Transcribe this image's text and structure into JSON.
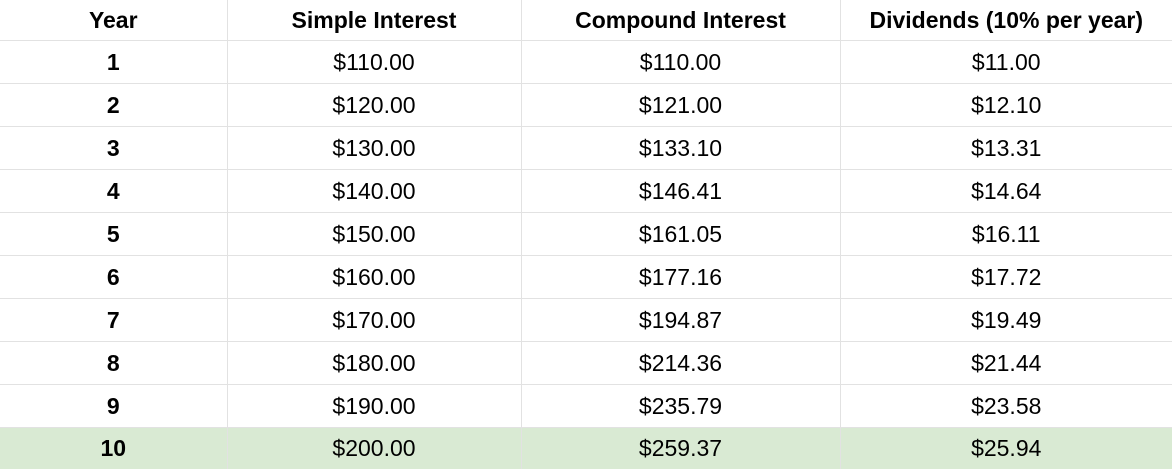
{
  "table": {
    "headers": [
      "Year",
      "Simple Interest",
      "Compound Interest",
      "Dividends (10% per year)"
    ],
    "rows": [
      [
        "1",
        "$110.00",
        "$110.00",
        "$11.00"
      ],
      [
        "2",
        "$120.00",
        "$121.00",
        "$12.10"
      ],
      [
        "3",
        "$130.00",
        "$133.10",
        "$13.31"
      ],
      [
        "4",
        "$140.00",
        "$146.41",
        "$14.64"
      ],
      [
        "5",
        "$150.00",
        "$161.05",
        "$16.11"
      ],
      [
        "6",
        "$160.00",
        "$177.16",
        "$17.72"
      ],
      [
        "7",
        "$170.00",
        "$194.87",
        "$19.49"
      ],
      [
        "8",
        "$180.00",
        "$214.36",
        "$21.44"
      ],
      [
        "9",
        "$190.00",
        "$235.79",
        "$23.58"
      ],
      [
        "10",
        "$200.00",
        "$259.37",
        "$25.94"
      ]
    ],
    "highlight_row_color": "#d9ead3",
    "grid_color": "#e2e2e2"
  }
}
